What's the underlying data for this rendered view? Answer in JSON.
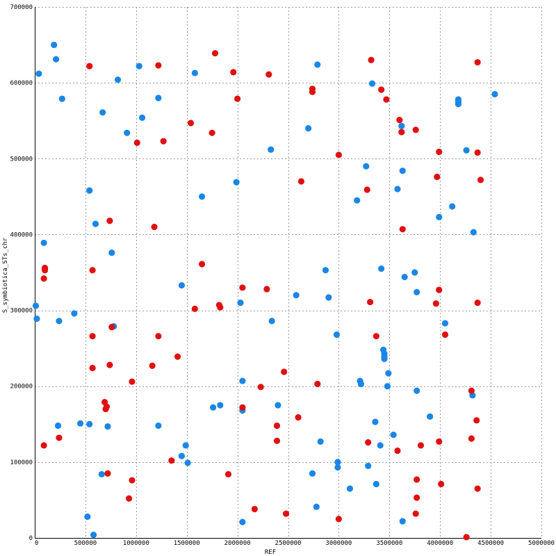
{
  "chart_data": {
    "type": "scatter",
    "xlabel": "REF",
    "ylabel": "S_symbiotica_STs_chr",
    "xlim": [
      0,
      5000000
    ],
    "ylim": [
      0,
      700000
    ],
    "x_ticks": [
      0,
      500000,
      1000000,
      1500000,
      2000000,
      2500000,
      3000000,
      3500000,
      4000000,
      4500000,
      5000000
    ],
    "y_ticks": [
      0,
      100000,
      200000,
      300000,
      400000,
      500000,
      600000,
      700000
    ],
    "x_tick_labels": [
      "0",
      "500000",
      "1000000",
      "1500000",
      "2000000",
      "2500000",
      "3000000",
      "3500000",
      "4000000",
      "4500000",
      "5000000"
    ],
    "y_tick_labels": [
      "0",
      "100000",
      "200000",
      "300000",
      "400000",
      "500000",
      "600000",
      "700000"
    ],
    "grid": true,
    "colors": {
      "blue": "#1a86e6",
      "red": "#e01010"
    },
    "series": [
      {
        "color": "#1a86e6",
        "points": [
          [
            40000,
            612000
          ],
          [
            190000,
            650000
          ],
          [
            210000,
            631000
          ],
          [
            270000,
            579000
          ],
          [
            670000,
            561000
          ],
          [
            820000,
            604000
          ],
          [
            910000,
            534000
          ],
          [
            1030000,
            622000
          ],
          [
            1060000,
            554000
          ],
          [
            1220000,
            580000
          ],
          [
            1580000,
            613000
          ],
          [
            2330000,
            512000
          ],
          [
            2700000,
            540000
          ],
          [
            2790000,
            624000
          ],
          [
            3330000,
            599000
          ],
          [
            3620000,
            543000
          ],
          [
            4180000,
            578000
          ],
          [
            4180000,
            575000
          ],
          [
            4180000,
            572000
          ],
          [
            4260000,
            511000
          ],
          [
            4540000,
            585000
          ],
          [
            3270000,
            490000
          ],
          [
            3630000,
            484000
          ],
          [
            3580000,
            460000
          ],
          [
            3180000,
            445000
          ],
          [
            4120000,
            437000
          ],
          [
            3990000,
            423000
          ],
          [
            4330000,
            403000
          ],
          [
            540000,
            458000
          ],
          [
            600000,
            414000
          ],
          [
            1650000,
            450000
          ],
          [
            1990000,
            469000
          ],
          [
            90000,
            389000
          ],
          [
            760000,
            376000
          ],
          [
            1450000,
            333000
          ],
          [
            2580000,
            320000
          ],
          [
            2870000,
            353000
          ],
          [
            2900000,
            317000
          ],
          [
            3420000,
            355000
          ],
          [
            3650000,
            344000
          ],
          [
            3750000,
            350000
          ],
          [
            3770000,
            324000
          ],
          [
            10000,
            306000
          ],
          [
            20000,
            289000
          ],
          [
            240000,
            286000
          ],
          [
            390000,
            296000
          ],
          [
            780000,
            279000
          ],
          [
            2030000,
            310000
          ],
          [
            2340000,
            286000
          ],
          [
            2980000,
            268000
          ],
          [
            3440000,
            248000
          ],
          [
            3450000,
            243000
          ],
          [
            3450000,
            239000
          ],
          [
            3450000,
            236000
          ],
          [
            3490000,
            217000
          ],
          [
            4050000,
            283000
          ],
          [
            2050000,
            207000
          ],
          [
            3210000,
            207000
          ],
          [
            3220000,
            203000
          ],
          [
            3480000,
            200000
          ],
          [
            3770000,
            194000
          ],
          [
            4320000,
            188000
          ],
          [
            230000,
            148000
          ],
          [
            450000,
            151000
          ],
          [
            540000,
            150000
          ],
          [
            720000,
            147000
          ],
          [
            1220000,
            148000
          ],
          [
            1760000,
            172000
          ],
          [
            1830000,
            175000
          ],
          [
            2050000,
            168000
          ],
          [
            2400000,
            175000
          ],
          [
            2820000,
            127000
          ],
          [
            3360000,
            153000
          ],
          [
            3410000,
            122000
          ],
          [
            3540000,
            136000
          ],
          [
            3900000,
            160000
          ],
          [
            1450000,
            108000
          ],
          [
            1490000,
            122000
          ],
          [
            1510000,
            99000
          ],
          [
            660000,
            84000
          ],
          [
            2740000,
            85000
          ],
          [
            2990000,
            100000
          ],
          [
            2990000,
            93000
          ],
          [
            3290000,
            95000
          ],
          [
            3110000,
            65000
          ],
          [
            3370000,
            71000
          ],
          [
            520000,
            28000
          ],
          [
            580000,
            4000
          ],
          [
            2050000,
            21000
          ],
          [
            2780000,
            41000
          ],
          [
            3630000,
            22000
          ]
        ]
      },
      {
        "color": "#e01010",
        "points": [
          [
            540000,
            622000
          ],
          [
            1220000,
            623000
          ],
          [
            1780000,
            639000
          ],
          [
            1960000,
            614000
          ],
          [
            2310000,
            611000
          ],
          [
            3320000,
            630000
          ],
          [
            4370000,
            627000
          ],
          [
            2740000,
            592000
          ],
          [
            2740000,
            588000
          ],
          [
            3420000,
            591000
          ],
          [
            3470000,
            578000
          ],
          [
            2000000,
            579000
          ],
          [
            1540000,
            547000
          ],
          [
            1750000,
            534000
          ],
          [
            1010000,
            521000
          ],
          [
            1270000,
            523000
          ],
          [
            3600000,
            551000
          ],
          [
            3620000,
            535000
          ],
          [
            3760000,
            538000
          ],
          [
            3000000,
            505000
          ],
          [
            3990000,
            509000
          ],
          [
            4370000,
            508000
          ],
          [
            2630000,
            470000
          ],
          [
            3280000,
            459000
          ],
          [
            3970000,
            476000
          ],
          [
            4400000,
            472000
          ],
          [
            3630000,
            407000
          ],
          [
            740000,
            418000
          ],
          [
            1180000,
            410000
          ],
          [
            100000,
            356000
          ],
          [
            100000,
            353000
          ],
          [
            90000,
            342000
          ],
          [
            570000,
            353000
          ],
          [
            1650000,
            361000
          ],
          [
            1580000,
            302000
          ],
          [
            1820000,
            307000
          ],
          [
            1830000,
            304000
          ],
          [
            2050000,
            330000
          ],
          [
            2290000,
            328000
          ],
          [
            3310000,
            311000
          ],
          [
            3990000,
            327000
          ],
          [
            3960000,
            309000
          ],
          [
            4370000,
            310000
          ],
          [
            570000,
            266000
          ],
          [
            760000,
            278000
          ],
          [
            1220000,
            266000
          ],
          [
            570000,
            224000
          ],
          [
            740000,
            228000
          ],
          [
            1160000,
            227000
          ],
          [
            1410000,
            239000
          ],
          [
            2460000,
            219000
          ],
          [
            3370000,
            266000
          ],
          [
            4050000,
            268000
          ],
          [
            960000,
            206000
          ],
          [
            2230000,
            199000
          ],
          [
            2790000,
            203000
          ],
          [
            690000,
            179000
          ],
          [
            700000,
            170000
          ],
          [
            710000,
            173000
          ],
          [
            2050000,
            172000
          ],
          [
            2390000,
            148000
          ],
          [
            2600000,
            159000
          ],
          [
            4310000,
            194000
          ],
          [
            90000,
            122000
          ],
          [
            240000,
            132000
          ],
          [
            2390000,
            128000
          ],
          [
            3290000,
            126000
          ],
          [
            3580000,
            115000
          ],
          [
            3810000,
            122000
          ],
          [
            3990000,
            127000
          ],
          [
            4310000,
            131000
          ],
          [
            4360000,
            155000
          ],
          [
            1350000,
            102000
          ],
          [
            720000,
            85000
          ],
          [
            960000,
            76000
          ],
          [
            930000,
            52000
          ],
          [
            1910000,
            84000
          ],
          [
            2170000,
            38000
          ],
          [
            2480000,
            32000
          ],
          [
            3000000,
            25000
          ],
          [
            3770000,
            77000
          ],
          [
            3770000,
            53000
          ],
          [
            3760000,
            32000
          ],
          [
            4010000,
            71000
          ],
          [
            4370000,
            65000
          ],
          [
            4260000,
            1000
          ]
        ]
      }
    ]
  }
}
